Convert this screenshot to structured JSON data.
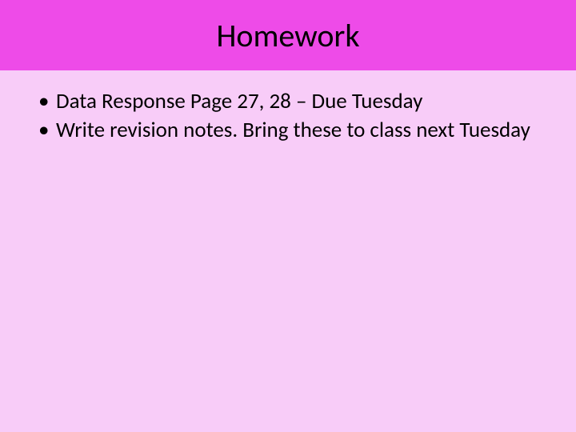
{
  "slide": {
    "title": "Homework",
    "bullets": [
      "Data Response Page 27, 28 – Due Tuesday",
      "Write revision notes. Bring these to class next Tuesday"
    ],
    "colors": {
      "title_bar_bg": "#ee4be8",
      "body_bg": "#f8ccf8",
      "text_color": "#000000"
    },
    "typography": {
      "title_fontsize": 40,
      "bullet_fontsize": 27,
      "font_family": "Calibri"
    }
  }
}
